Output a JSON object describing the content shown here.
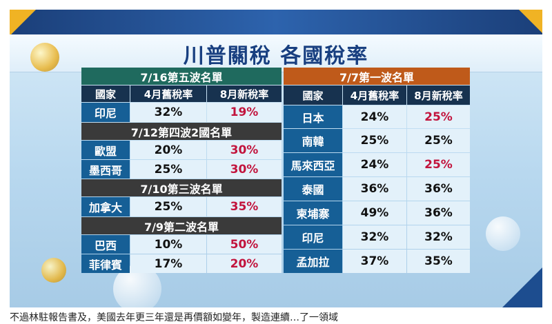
{
  "title": "川普關稅 各國稅率",
  "caption": "不過林駐報告書及，美國去年更三年還是再價額如變年，製造連續…了一領域",
  "colors": {
    "new_rate_highlight": "#c2143d",
    "header_green": "#1f6a5e",
    "header_gray": "#3a3a3a",
    "header_orange": "#bf5a1a",
    "country_blue": "#165f96"
  },
  "left": {
    "colhead": {
      "country": "國家",
      "old": "4月舊稅率",
      "new": "8月新稅率"
    },
    "wave5": {
      "header": "7/16第五波名單",
      "rows": [
        {
          "country": "印尼",
          "old": "32%",
          "new": "19%"
        }
      ]
    },
    "wave4": {
      "header": "7/12第四波2國名單",
      "rows": [
        {
          "country": "歐盟",
          "old": "20%",
          "new": "30%"
        },
        {
          "country": "墨西哥",
          "old": "25%",
          "new": "30%"
        }
      ]
    },
    "wave3": {
      "header": "7/10第三波名單",
      "rows": [
        {
          "country": "加拿大",
          "old": "25%",
          "new": "35%"
        }
      ]
    },
    "wave2": {
      "header": "7/9第二波名單",
      "rows": [
        {
          "country": "巴西",
          "old": "10%",
          "new": "50%"
        },
        {
          "country": "菲律賓",
          "old": "17%",
          "new": "20%"
        }
      ]
    }
  },
  "right": {
    "header": "7/7第一波名單",
    "colhead": {
      "country": "國家",
      "old": "4月舊稅率",
      "new": "8月新稅率"
    },
    "rows": [
      {
        "country": "日本",
        "old": "24%",
        "new": "25%"
      },
      {
        "country": "南韓",
        "old": "25%",
        "new": "25%"
      },
      {
        "country": "馬來西亞",
        "old": "24%",
        "new": "25%"
      },
      {
        "country": "泰國",
        "old": "36%",
        "new": "36%"
      },
      {
        "country": "柬埔寨",
        "old": "49%",
        "new": "36%"
      },
      {
        "country": "印尼",
        "old": "32%",
        "new": "32%"
      },
      {
        "country": "孟加拉",
        "old": "37%",
        "new": "35%"
      }
    ]
  }
}
